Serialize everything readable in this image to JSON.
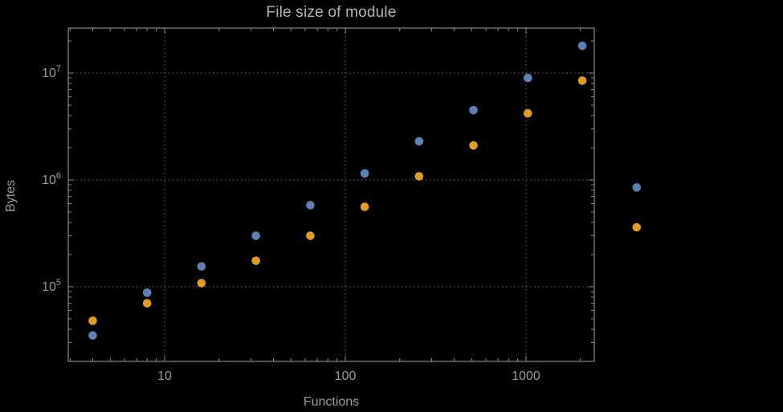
{
  "chart_data": {
    "type": "scatter",
    "title": "File size of module",
    "xlabel": "Functions",
    "ylabel": "Bytes",
    "x_scale": "log",
    "y_scale": "log",
    "xlim": [
      2.9,
      2400
    ],
    "ylim": [
      20000,
      26000000
    ],
    "grid": "dotted-major-gridlines",
    "legend_position": "none",
    "x_ticks": [
      {
        "value": 10,
        "label": "10"
      },
      {
        "value": 100,
        "label": "100"
      },
      {
        "value": 1000,
        "label": "1000"
      }
    ],
    "y_ticks": [
      {
        "value": 100000,
        "base": "10",
        "exp": "5"
      },
      {
        "value": 1000000,
        "base": "10",
        "exp": "6"
      },
      {
        "value": 10000000,
        "base": "10",
        "exp": "7"
      }
    ],
    "series": [
      {
        "name": "blue-series",
        "color": "#5e81b5",
        "x": [
          4,
          8,
          16,
          32,
          64,
          128,
          256,
          512,
          1024,
          2048,
          4096
        ],
        "y": [
          35000,
          88000,
          155000,
          300000,
          580000,
          1150000,
          2300000,
          4500000,
          9000000,
          18000000,
          850000
        ]
      },
      {
        "name": "orange-series",
        "color": "#e19c24",
        "x": [
          4,
          8,
          16,
          32,
          64,
          128,
          256,
          512,
          1024,
          2048,
          4096
        ],
        "y": [
          48000,
          70000,
          108000,
          175000,
          300000,
          560000,
          1080000,
          2100000,
          4200000,
          8500000,
          360000
        ]
      }
    ]
  },
  "colors": {
    "background": "#000000",
    "frame": "#8a8a8a",
    "grid": "#5e5e5e",
    "text": "#9c9c9c",
    "title": "#b3b3b3"
  }
}
